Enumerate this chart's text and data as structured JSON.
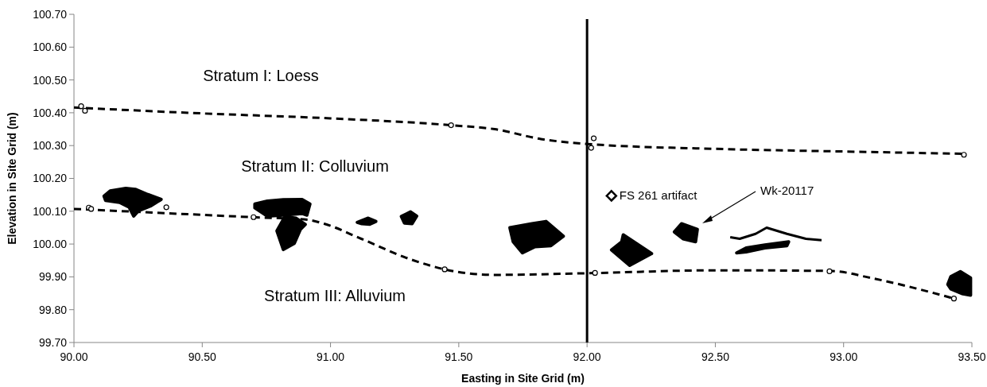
{
  "chart_data": {
    "type": "scatter",
    "xlabel": "Easting in Site Grid (m)",
    "ylabel": "Elevation in Site Grid (m)",
    "xlim": [
      90,
      93.5
    ],
    "ylim": [
      99.7,
      100.7
    ],
    "xticks": [
      {
        "value": 90,
        "label": "90.00"
      },
      {
        "value": 90.5,
        "label": "90.50"
      },
      {
        "value": 91,
        "label": "91.00"
      },
      {
        "value": 91.5,
        "label": "91.50"
      },
      {
        "value": 92,
        "label": "92.00"
      },
      {
        "value": 92.5,
        "label": "92.50"
      },
      {
        "value": 93,
        "label": "93.00"
      },
      {
        "value": 93.5,
        "label": "93.50"
      }
    ],
    "yticks": [
      {
        "value": 99.7,
        "label": "99.70"
      },
      {
        "value": 99.8,
        "label": "99.80"
      },
      {
        "value": 99.9,
        "label": "99.90"
      },
      {
        "value": 100,
        "label": "100.00"
      },
      {
        "value": 100.1,
        "label": "100.10"
      },
      {
        "value": 100.2,
        "label": "100.20"
      },
      {
        "value": 100.3,
        "label": "100.30"
      },
      {
        "value": 100.4,
        "label": "100.40"
      },
      {
        "value": 100.5,
        "label": "100.50"
      },
      {
        "value": 100.6,
        "label": "100.60"
      },
      {
        "value": 100.7,
        "label": "100.70"
      }
    ],
    "grid": false,
    "ref_lines": [
      {
        "axis": "x",
        "value": 92,
        "color": "#000000",
        "line_style": "solid"
      }
    ],
    "annotations": [
      "Stratum I: Loess",
      "Stratum II: Colluvium",
      "Stratum III: Alluvium",
      "Wk-20117"
    ],
    "series": [
      {
        "type": "line",
        "color": "#000000",
        "line_style": "dashed",
        "marker": "none",
        "x": [
          90,
          90.5,
          91,
          91.47,
          91.64,
          91.82,
          92,
          92.5,
          93,
          93.47
        ],
        "values": [
          100.416,
          100.398,
          100.383,
          100.362,
          100.35,
          100.32,
          100.305,
          100.29,
          100.282,
          100.275
        ]
      },
      {
        "type": "line",
        "color": "#000000",
        "line_style": "dashed",
        "marker": "none",
        "x": [
          90,
          90.69,
          90.91,
          90.975,
          91.12,
          91.31,
          91.45,
          91.64,
          92,
          92.5,
          92.95,
          93.11,
          93.43
        ],
        "values": [
          100.107,
          100.082,
          100.074,
          100.062,
          100.016,
          99.954,
          99.922,
          99.906,
          99.911,
          99.92,
          99.918,
          99.896,
          99.834
        ]
      },
      {
        "color": "#000000",
        "marker": "circle",
        "x": [
          90.028,
          90.043,
          90.058,
          90.067,
          90.36,
          90.7,
          91.47,
          91.445,
          92.026,
          92.016,
          92.031,
          92.945,
          93.469,
          93.43
        ],
        "values": [
          100.42,
          100.406,
          100.111,
          100.107,
          100.112,
          100.082,
          100.362,
          99.923,
          100.322,
          100.293,
          99.912,
          99.917,
          100.272,
          99.834
        ]
      },
      {
        "name": "FS 261 artifact",
        "color": "#000000",
        "marker": "diamond",
        "x": [
          92.095
        ],
        "values": [
          100.147
        ]
      },
      {
        "type": "area",
        "color": "#000000",
        "x": [
          90.117,
          90.141,
          90.202,
          90.239,
          90.288,
          90.34,
          90.301,
          90.251,
          90.233,
          90.215,
          90.178,
          90.123
        ],
        "values": [
          100.146,
          100.162,
          100.17,
          100.167,
          100.151,
          100.136,
          100.117,
          100.101,
          100.085,
          100.112,
          100.127,
          100.133
        ]
      },
      {
        "type": "area",
        "color": "#000000",
        "x": [
          90.705,
          90.754,
          90.816,
          90.889,
          90.92,
          90.908,
          90.889,
          90.816,
          90.754,
          90.705
        ],
        "values": [
          100.122,
          100.131,
          100.135,
          100.136,
          100.122,
          100.088,
          100.093,
          100.088,
          100.085,
          100.11
        ]
      },
      {
        "type": "area",
        "color": "#000000",
        "x": [
          90.791,
          90.822,
          90.865,
          90.902,
          90.883,
          90.859,
          90.816
        ],
        "values": [
          100.04,
          100.083,
          100.079,
          100.06,
          100.045,
          100.002,
          99.983
        ]
      },
      {
        "type": "area",
        "color": "#000000",
        "x": [
          91.104,
          91.147,
          91.177,
          91.153,
          91.122
        ],
        "values": [
          100.066,
          100.079,
          100.069,
          100.06,
          100.062
        ]
      },
      {
        "type": "area",
        "color": "#000000",
        "x": [
          91.276,
          91.312,
          91.336,
          91.318,
          91.288
        ],
        "values": [
          100.084,
          100.098,
          100.085,
          100.062,
          100.064
        ]
      },
      {
        "type": "area",
        "color": "#000000",
        "x": [
          91.699,
          91.785,
          91.84,
          91.908,
          91.859,
          91.797,
          91.748,
          91.712
        ],
        "values": [
          100.05,
          100.062,
          100.069,
          100.024,
          99.995,
          99.992,
          99.973,
          100.007
        ]
      },
      {
        "type": "area",
        "color": "#000000",
        "x": [
          92.141,
          92.252,
          92.166,
          92.095,
          92.135
        ],
        "values": [
          100.028,
          99.971,
          99.935,
          99.982,
          100.007
        ]
      },
      {
        "type": "area",
        "color": "#000000",
        "x": [
          92.368,
          92.43,
          92.423,
          92.374,
          92.34
        ],
        "values": [
          100.062,
          100.045,
          100.007,
          100.016,
          100.037
        ]
      },
      {
        "type": "line",
        "color": "#000000",
        "line_style": "solid",
        "x": [
          92.558,
          92.595,
          92.657,
          92.7,
          92.779,
          92.853,
          92.914
        ],
        "values": [
          100.021,
          100.016,
          100.031,
          100.05,
          100.031,
          100.016,
          100.012
        ]
      },
      {
        "type": "area",
        "color": "#000000",
        "x": [
          92.583,
          92.62,
          92.693,
          92.786,
          92.779,
          92.693,
          92.62
        ],
        "values": [
          99.973,
          99.988,
          99.997,
          100.007,
          99.995,
          99.988,
          99.976
        ]
      },
      {
        "type": "area",
        "color": "#000000",
        "x": [
          93.418,
          93.455,
          93.495,
          93.495,
          93.461,
          93.418,
          93.406
        ],
        "values": [
          99.901,
          99.916,
          99.897,
          99.844,
          99.849,
          99.863,
          99.877
        ]
      }
    ]
  }
}
